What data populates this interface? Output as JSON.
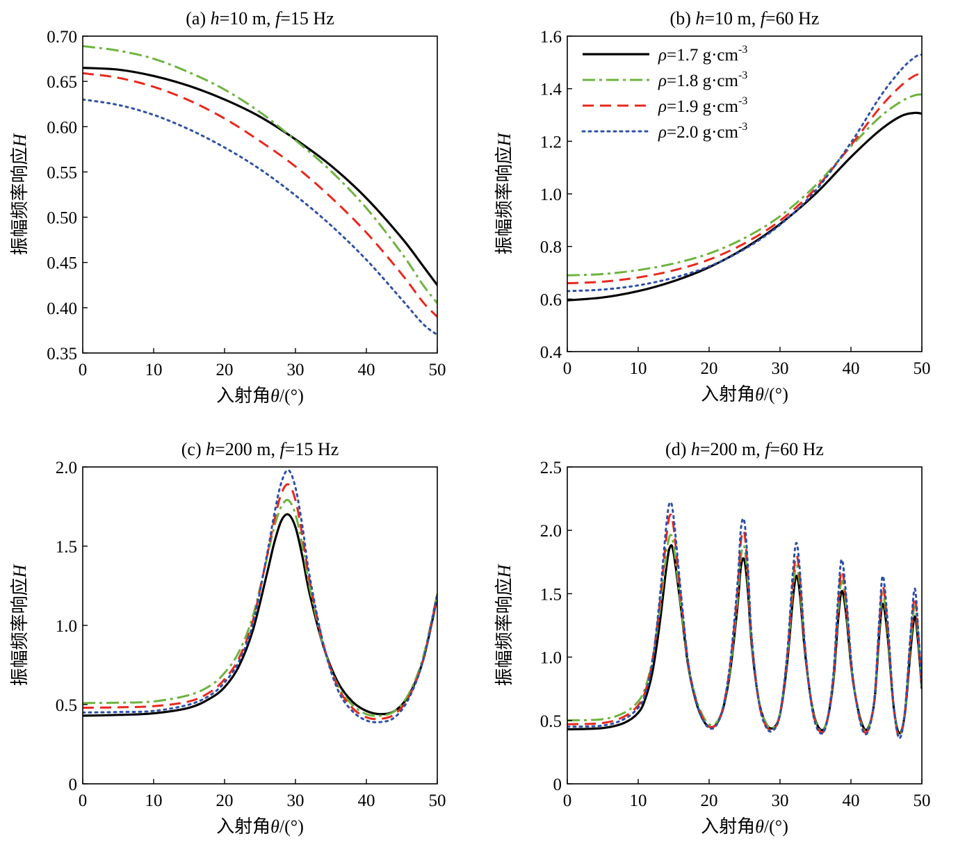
{
  "colors": {
    "rho_1_7": "#000000",
    "rho_1_8": "#6db33f",
    "rho_1_9": "#e8281e",
    "rho_2_0": "#2e4fa8"
  },
  "legend": {
    "entries": [
      {
        "sym": "ρ",
        "text": "=1.7 g·cm",
        "sup": "-3"
      },
      {
        "sym": "ρ",
        "text": "=1.8 g·cm",
        "sup": "-3"
      },
      {
        "sym": "ρ",
        "text": "=1.9 g·cm",
        "sup": "-3"
      },
      {
        "sym": "ρ",
        "text": "=2.0 g·cm",
        "sup": "-3"
      }
    ]
  },
  "chart_data": [
    {
      "type": "line",
      "title": {
        "prefix": "(a) ",
        "v1": "h",
        "t1": "=10 m, ",
        "v2": "f",
        "t2": "=15 Hz"
      },
      "xlabel": {
        "text": "入射角",
        "var": "θ",
        "unit": "/(°)"
      },
      "ylabel": {
        "text": "振幅频率响应",
        "var": "H"
      },
      "xlim": [
        0,
        50
      ],
      "ylim": [
        0.35,
        0.7
      ],
      "xticks": [
        "0",
        "10",
        "20",
        "30",
        "40",
        "50"
      ],
      "yticks": [
        "0.35",
        "0.40",
        "0.45",
        "0.50",
        "0.55",
        "0.60",
        "0.65",
        "0.70"
      ],
      "legend_position": "none",
      "series": [
        {
          "name": "ρ=1.7 g·cm-3",
          "x": [
            0,
            5,
            10,
            15,
            20,
            25,
            30,
            35,
            40,
            45,
            48,
            50
          ],
          "y": [
            0.665,
            0.663,
            0.656,
            0.645,
            0.63,
            0.611,
            0.586,
            0.557,
            0.521,
            0.477,
            0.446,
            0.425
          ]
        },
        {
          "name": "ρ=1.8 g·cm-3",
          "x": [
            0,
            5,
            10,
            15,
            20,
            25,
            30,
            35,
            40,
            45,
            48,
            50
          ],
          "y": [
            0.689,
            0.684,
            0.675,
            0.66,
            0.641,
            0.616,
            0.585,
            0.551,
            0.51,
            0.46,
            0.425,
            0.405
          ]
        },
        {
          "name": "ρ=1.9 g·cm-3",
          "x": [
            0,
            5,
            10,
            15,
            20,
            25,
            30,
            35,
            40,
            45,
            48,
            50
          ],
          "y": [
            0.659,
            0.654,
            0.644,
            0.629,
            0.609,
            0.584,
            0.556,
            0.522,
            0.483,
            0.437,
            0.406,
            0.39
          ]
        },
        {
          "name": "ρ=2.0 g·cm-3",
          "x": [
            0,
            5,
            10,
            15,
            20,
            25,
            30,
            35,
            40,
            45,
            48,
            50
          ],
          "y": [
            0.63,
            0.624,
            0.613,
            0.597,
            0.577,
            0.553,
            0.524,
            0.491,
            0.453,
            0.409,
            0.382,
            0.37
          ]
        }
      ]
    },
    {
      "type": "line",
      "title": {
        "prefix": "(b) ",
        "v1": "h",
        "t1": "=10 m, ",
        "v2": "f",
        "t2": "=60 Hz"
      },
      "xlabel": {
        "text": "入射角",
        "var": "θ",
        "unit": "/(°)"
      },
      "ylabel": {
        "text": "振幅频率响应",
        "var": "H"
      },
      "xlim": [
        0,
        50
      ],
      "ylim": [
        0.4,
        1.6
      ],
      "xticks": [
        "0",
        "10",
        "20",
        "30",
        "40",
        "50"
      ],
      "yticks": [
        "0.4",
        "0.6",
        "0.8",
        "1.0",
        "1.2",
        "1.4",
        "1.6"
      ],
      "legend_position": "top-left",
      "series": [
        {
          "name": "ρ=1.7 g·cm-3",
          "x": [
            0,
            5,
            10,
            15,
            20,
            25,
            30,
            35,
            40,
            44,
            47,
            49,
            50
          ],
          "y": [
            0.595,
            0.606,
            0.63,
            0.668,
            0.721,
            0.793,
            0.885,
            1.0,
            1.14,
            1.24,
            1.295,
            1.308,
            1.305
          ]
        },
        {
          "name": "ρ=1.8 g·cm-3",
          "x": [
            0,
            5,
            10,
            15,
            20,
            25,
            30,
            35,
            40,
            44,
            47,
            49,
            50
          ],
          "y": [
            0.69,
            0.695,
            0.71,
            0.735,
            0.773,
            0.832,
            0.915,
            1.032,
            1.18,
            1.29,
            1.35,
            1.375,
            1.378
          ]
        },
        {
          "name": "ρ=1.9 g·cm-3",
          "x": [
            0,
            5,
            10,
            15,
            20,
            25,
            30,
            35,
            40,
            44,
            47,
            49,
            50
          ],
          "y": [
            0.66,
            0.666,
            0.682,
            0.709,
            0.75,
            0.812,
            0.898,
            1.02,
            1.185,
            1.325,
            1.41,
            1.45,
            1.455
          ]
        },
        {
          "name": "ρ=2.0 g·cm-3",
          "x": [
            0,
            5,
            10,
            15,
            20,
            25,
            30,
            35,
            40,
            44,
            47,
            49,
            50
          ],
          "y": [
            0.63,
            0.636,
            0.652,
            0.681,
            0.724,
            0.79,
            0.882,
            1.012,
            1.195,
            1.365,
            1.47,
            1.52,
            1.53
          ]
        }
      ]
    },
    {
      "type": "line",
      "title": {
        "prefix": "(c) ",
        "v1": "h",
        "t1": "=200 m, ",
        "v2": "f",
        "t2": "=15 Hz"
      },
      "xlabel": {
        "text": "入射角",
        "var": "θ",
        "unit": "/(°)"
      },
      "ylabel": {
        "text": "振幅频率响应",
        "var": "H"
      },
      "xlim": [
        0,
        50
      ],
      "ylim": [
        0,
        2.0
      ],
      "xticks": [
        "0",
        "10",
        "20",
        "30",
        "40",
        "50"
      ],
      "yticks": [
        "0",
        "0.5",
        "1.0",
        "1.5",
        "2.0"
      ],
      "legend_position": "none",
      "series": [
        {
          "name": "ρ=1.7 g·cm-3",
          "x": [
            0,
            5,
            10,
            15,
            18,
            20,
            22,
            24,
            26,
            27,
            28,
            29,
            30,
            31,
            32,
            34,
            36,
            38,
            40,
            42,
            44,
            46,
            48,
            50
          ],
          "y": [
            0.43,
            0.435,
            0.445,
            0.48,
            0.54,
            0.61,
            0.74,
            0.97,
            1.33,
            1.52,
            1.66,
            1.7,
            1.62,
            1.43,
            1.2,
            0.86,
            0.64,
            0.52,
            0.46,
            0.44,
            0.46,
            0.56,
            0.78,
            1.18
          ]
        },
        {
          "name": "ρ=1.8 g·cm-3",
          "x": [
            0,
            5,
            10,
            15,
            18,
            20,
            22,
            24,
            26,
            27,
            28,
            29,
            30,
            31,
            32,
            34,
            36,
            38,
            40,
            42,
            44,
            46,
            48,
            50
          ],
          "y": [
            0.51,
            0.512,
            0.52,
            0.56,
            0.62,
            0.7,
            0.83,
            1.06,
            1.43,
            1.62,
            1.75,
            1.79,
            1.7,
            1.5,
            1.24,
            0.86,
            0.62,
            0.5,
            0.44,
            0.43,
            0.46,
            0.57,
            0.8,
            1.2
          ]
        },
        {
          "name": "ρ=1.9 g·cm-3",
          "x": [
            0,
            5,
            10,
            15,
            18,
            20,
            22,
            24,
            26,
            27,
            28,
            29,
            30,
            31,
            32,
            34,
            36,
            38,
            40,
            42,
            44,
            46,
            48,
            50
          ],
          "y": [
            0.48,
            0.483,
            0.49,
            0.52,
            0.58,
            0.66,
            0.79,
            1.03,
            1.44,
            1.66,
            1.83,
            1.89,
            1.79,
            1.56,
            1.28,
            0.87,
            0.61,
            0.48,
            0.42,
            0.41,
            0.44,
            0.55,
            0.78,
            1.19
          ]
        },
        {
          "name": "ρ=2.0 g·cm-3",
          "x": [
            0,
            5,
            10,
            15,
            18,
            20,
            22,
            24,
            26,
            27,
            28,
            29,
            30,
            31,
            32,
            34,
            36,
            38,
            40,
            42,
            44,
            46,
            48,
            50
          ],
          "y": [
            0.45,
            0.453,
            0.46,
            0.5,
            0.56,
            0.64,
            0.77,
            1.01,
            1.45,
            1.7,
            1.9,
            1.98,
            1.87,
            1.62,
            1.31,
            0.87,
            0.59,
            0.46,
            0.4,
            0.39,
            0.42,
            0.54,
            0.78,
            1.2
          ]
        }
      ]
    },
    {
      "type": "line",
      "title": {
        "prefix": "(d) ",
        "v1": "h",
        "t1": "=200 m, ",
        "v2": "f",
        "t2": "=60 Hz"
      },
      "xlabel": {
        "text": "入射角",
        "var": "θ",
        "unit": "/(°)"
      },
      "ylabel": {
        "text": "振幅频率响应",
        "var": "H"
      },
      "xlim": [
        0,
        50
      ],
      "ylim": [
        0,
        2.5
      ],
      "xticks": [
        "0",
        "10",
        "20",
        "30",
        "40",
        "50"
      ],
      "yticks": [
        "0",
        "0.5",
        "1.0",
        "1.5",
        "2.0",
        "2.5"
      ],
      "legend_position": "none",
      "series": [
        {
          "name": "ρ=1.7 g·cm-3",
          "x": [
            0,
            5,
            8,
            10,
            11,
            12,
            13,
            14,
            14.5,
            15,
            16,
            17,
            18,
            19,
            20,
            21,
            22,
            23,
            24,
            24.5,
            25,
            25.5,
            26,
            27,
            28,
            29,
            30,
            31,
            31.8,
            32.3,
            32.8,
            33.5,
            34.5,
            35.5,
            36.5,
            37.5,
            38.2,
            38.7,
            39.3,
            40.2,
            41.3,
            42.3,
            43.3,
            44.0,
            44.5,
            45.2,
            46.0,
            46.8,
            47.6,
            48.4,
            49.0,
            49.5,
            50
          ],
          "y": [
            0.43,
            0.44,
            0.48,
            0.56,
            0.67,
            0.88,
            1.25,
            1.72,
            1.87,
            1.82,
            1.4,
            0.95,
            0.68,
            0.52,
            0.45,
            0.47,
            0.6,
            0.9,
            1.4,
            1.72,
            1.76,
            1.5,
            1.1,
            0.66,
            0.48,
            0.44,
            0.55,
            0.95,
            1.45,
            1.64,
            1.5,
            1.05,
            0.62,
            0.44,
            0.47,
            0.8,
            1.3,
            1.52,
            1.35,
            0.85,
            0.52,
            0.43,
            0.65,
            1.18,
            1.42,
            1.15,
            0.62,
            0.4,
            0.55,
            1.05,
            1.32,
            1.1,
            0.75
          ]
        },
        {
          "name": "ρ=1.8 g·cm-3",
          "x": [
            0,
            5,
            8,
            10,
            11,
            12,
            13,
            14,
            14.5,
            15,
            16,
            17,
            18,
            19,
            20,
            21,
            22,
            23,
            24,
            24.5,
            25,
            25.5,
            26,
            27,
            28,
            29,
            30,
            31,
            31.8,
            32.3,
            32.8,
            33.5,
            34.5,
            35.5,
            36.5,
            37.5,
            38.2,
            38.7,
            39.3,
            40.2,
            41.3,
            42.3,
            43.3,
            44.0,
            44.5,
            45.2,
            46.0,
            46.8,
            47.6,
            48.4,
            49.0,
            49.5,
            50
          ],
          "y": [
            0.5,
            0.51,
            0.56,
            0.65,
            0.76,
            0.98,
            1.35,
            1.82,
            1.96,
            1.88,
            1.42,
            0.96,
            0.7,
            0.55,
            0.47,
            0.48,
            0.61,
            0.92,
            1.45,
            1.8,
            1.86,
            1.56,
            1.12,
            0.66,
            0.48,
            0.44,
            0.56,
            0.98,
            1.52,
            1.72,
            1.56,
            1.07,
            0.62,
            0.43,
            0.47,
            0.82,
            1.36,
            1.6,
            1.4,
            0.86,
            0.51,
            0.42,
            0.66,
            1.22,
            1.5,
            1.19,
            0.62,
            0.38,
            0.56,
            1.1,
            1.4,
            1.14,
            0.76
          ]
        },
        {
          "name": "ρ=1.9 g·cm-3",
          "x": [
            0,
            5,
            8,
            10,
            11,
            12,
            13,
            14,
            14.5,
            15,
            16,
            17,
            18,
            19,
            20,
            21,
            22,
            23,
            24,
            24.5,
            25,
            25.5,
            26,
            27,
            28,
            29,
            30,
            31,
            31.8,
            32.3,
            32.8,
            33.5,
            34.5,
            35.5,
            36.5,
            37.5,
            38.2,
            38.7,
            39.3,
            40.2,
            41.3,
            42.3,
            43.3,
            44.0,
            44.5,
            45.2,
            46.0,
            46.8,
            47.6,
            48.4,
            49.0,
            49.5,
            50
          ],
          "y": [
            0.47,
            0.48,
            0.53,
            0.62,
            0.73,
            0.97,
            1.4,
            1.96,
            2.12,
            2.02,
            1.48,
            0.97,
            0.69,
            0.53,
            0.45,
            0.47,
            0.61,
            0.95,
            1.52,
            1.92,
            1.97,
            1.62,
            1.14,
            0.65,
            0.46,
            0.43,
            0.55,
            1.0,
            1.58,
            1.8,
            1.62,
            1.08,
            0.61,
            0.42,
            0.46,
            0.83,
            1.42,
            1.68,
            1.45,
            0.87,
            0.5,
            0.41,
            0.66,
            1.26,
            1.56,
            1.22,
            0.62,
            0.37,
            0.56,
            1.14,
            1.47,
            1.17,
            0.77
          ]
        },
        {
          "name": "ρ=2.0 g·cm-3",
          "x": [
            0,
            5,
            8,
            10,
            11,
            12,
            13,
            14,
            14.5,
            15,
            16,
            17,
            18,
            19,
            20,
            21,
            22,
            23,
            24,
            24.5,
            25,
            25.5,
            26,
            27,
            28,
            29,
            30,
            31,
            31.8,
            32.3,
            32.8,
            33.5,
            34.5,
            35.5,
            36.5,
            37.5,
            38.2,
            38.7,
            39.3,
            40.2,
            41.3,
            42.3,
            43.3,
            44.0,
            44.5,
            45.2,
            46.0,
            46.8,
            47.6,
            48.4,
            49.0,
            49.5,
            50
          ],
          "y": [
            0.45,
            0.46,
            0.51,
            0.6,
            0.71,
            0.96,
            1.44,
            2.06,
            2.22,
            2.1,
            1.52,
            0.98,
            0.69,
            0.52,
            0.44,
            0.46,
            0.61,
            0.97,
            1.58,
            2.02,
            2.06,
            1.68,
            1.16,
            0.65,
            0.45,
            0.42,
            0.55,
            1.02,
            1.66,
            1.9,
            1.68,
            1.1,
            0.6,
            0.41,
            0.46,
            0.85,
            1.48,
            1.77,
            1.5,
            0.88,
            0.49,
            0.4,
            0.67,
            1.3,
            1.64,
            1.26,
            0.63,
            0.36,
            0.57,
            1.18,
            1.54,
            1.2,
            0.78
          ]
        }
      ]
    }
  ]
}
